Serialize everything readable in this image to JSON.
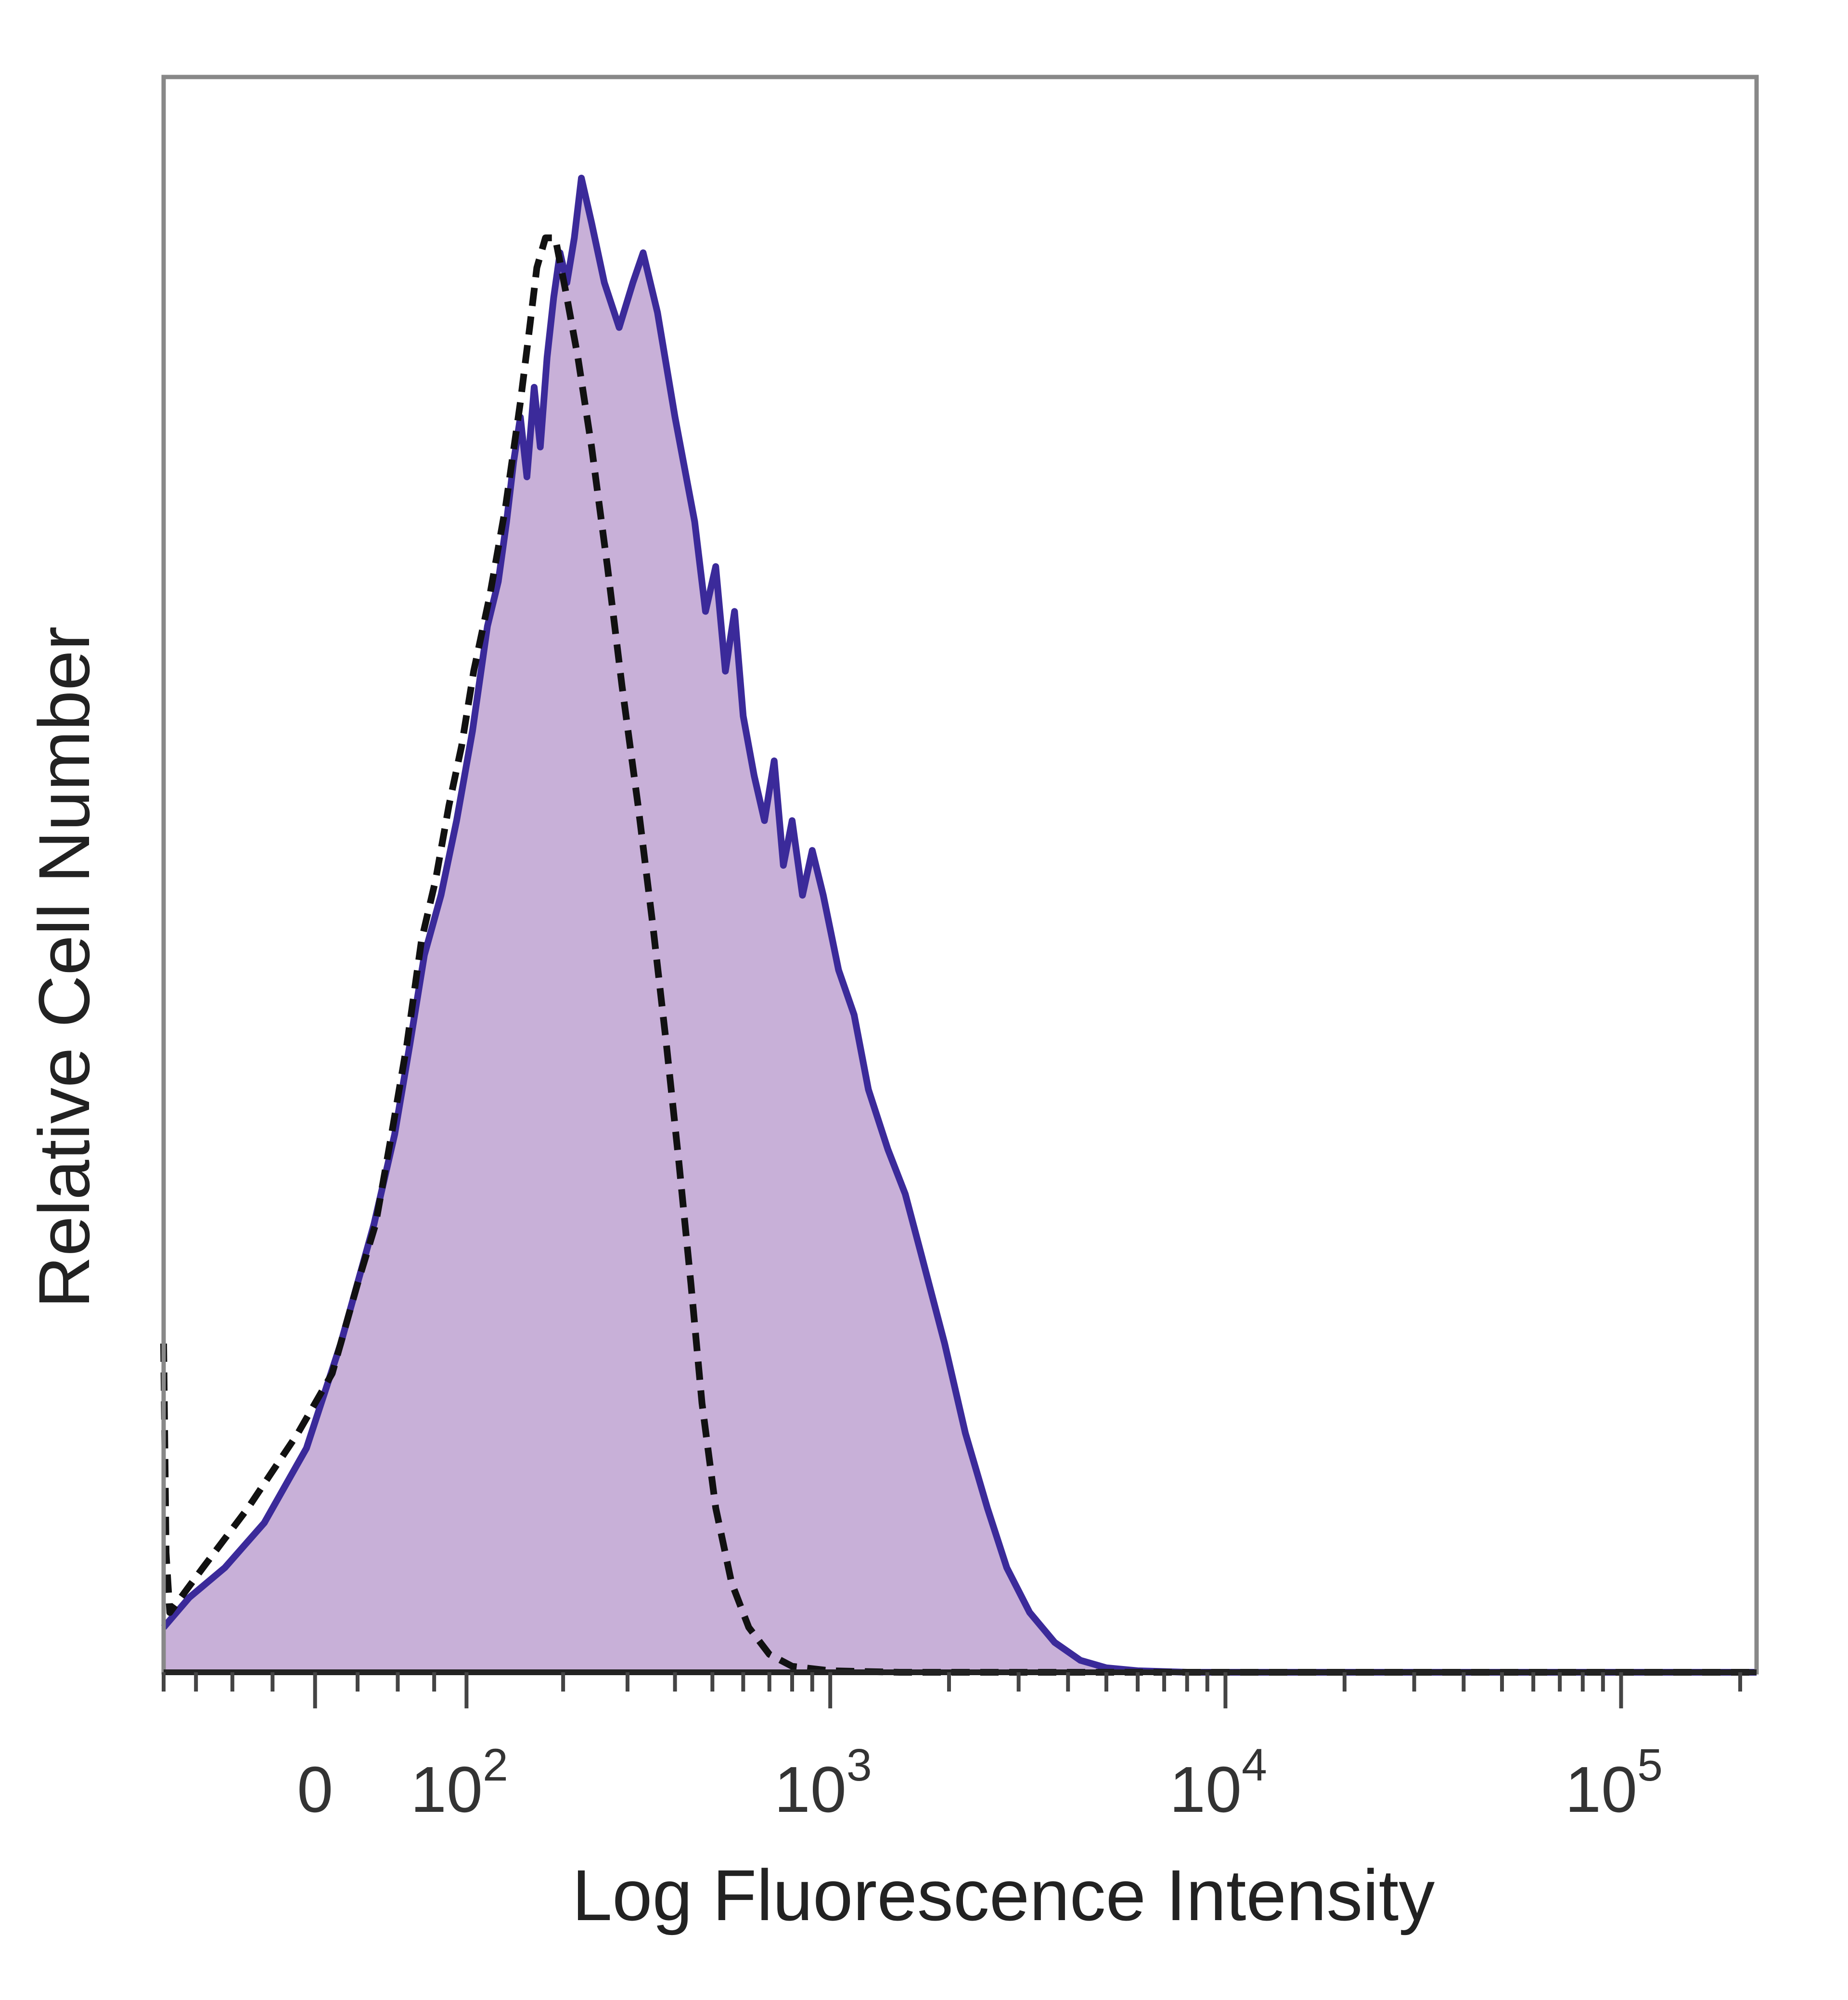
{
  "chart_data": {
    "type": "area",
    "title": "",
    "xlabel": "Log Fluorescence Intensity",
    "ylabel": "Relative Cell Number",
    "x_scale": "biexponential",
    "xlim": [
      -100,
      220000
    ],
    "ylim": [
      0,
      1
    ],
    "grid": false,
    "legend": "none",
    "x_ticks": [
      {
        "value": 0,
        "label": "0",
        "exp": ""
      },
      {
        "value": 100,
        "label": "10",
        "exp": "2"
      },
      {
        "value": 1000,
        "label": "10",
        "exp": "3"
      },
      {
        "value": 10000,
        "label": "10",
        "exp": "4"
      },
      {
        "value": 100000,
        "label": "10",
        "exp": "5"
      }
    ],
    "series": [
      {
        "style": "filled",
        "line_color": "#3b2a9a",
        "fill_color": "#c8b0d8",
        "points": [
          [
            -100,
            0.03
          ],
          [
            -80,
            0.05
          ],
          [
            -55,
            0.07
          ],
          [
            -30,
            0.1
          ],
          [
            -5,
            0.15
          ],
          [
            15,
            0.22
          ],
          [
            35,
            0.3
          ],
          [
            48,
            0.36
          ],
          [
            58,
            0.42
          ],
          [
            68,
            0.48
          ],
          [
            80,
            0.52
          ],
          [
            92,
            0.57
          ],
          [
            105,
            0.63
          ],
          [
            118,
            0.7
          ],
          [
            128,
            0.73
          ],
          [
            136,
            0.77
          ],
          [
            143,
            0.81
          ],
          [
            150,
            0.84
          ],
          [
            157,
            0.8
          ],
          [
            165,
            0.86
          ],
          [
            172,
            0.82
          ],
          [
            180,
            0.88
          ],
          [
            188,
            0.92
          ],
          [
            196,
            0.95
          ],
          [
            205,
            0.93
          ],
          [
            215,
            0.96
          ],
          [
            225,
            1.0
          ],
          [
            240,
            0.97
          ],
          [
            260,
            0.93
          ],
          [
            285,
            0.9
          ],
          [
            310,
            0.93
          ],
          [
            330,
            0.95
          ],
          [
            360,
            0.91
          ],
          [
            400,
            0.84
          ],
          [
            450,
            0.77
          ],
          [
            480,
            0.71
          ],
          [
            510,
            0.74
          ],
          [
            540,
            0.67
          ],
          [
            570,
            0.71
          ],
          [
            600,
            0.64
          ],
          [
            640,
            0.6
          ],
          [
            680,
            0.57
          ],
          [
            720,
            0.61
          ],
          [
            760,
            0.54
          ],
          [
            800,
            0.57
          ],
          [
            850,
            0.52
          ],
          [
            900,
            0.55
          ],
          [
            960,
            0.52
          ],
          [
            1050,
            0.47
          ],
          [
            1150,
            0.44
          ],
          [
            1250,
            0.39
          ],
          [
            1400,
            0.35
          ],
          [
            1550,
            0.32
          ],
          [
            1700,
            0.28
          ],
          [
            1950,
            0.22
          ],
          [
            2200,
            0.16
          ],
          [
            2500,
            0.11
          ],
          [
            2800,
            0.07
          ],
          [
            3200,
            0.04
          ],
          [
            3700,
            0.02
          ],
          [
            4300,
            0.008
          ],
          [
            5000,
            0.003
          ],
          [
            6000,
            0.001
          ],
          [
            8000,
            0
          ],
          [
            20000,
            0
          ],
          [
            50000,
            0
          ],
          [
            100000,
            0
          ],
          [
            220000,
            0
          ]
        ]
      },
      {
        "style": "dashed",
        "line_color": "#111111",
        "points": [
          [
            -100,
            0.22
          ],
          [
            -98,
            0.08
          ],
          [
            -95,
            0.04
          ],
          [
            -70,
            0.07
          ],
          [
            -40,
            0.11
          ],
          [
            -10,
            0.16
          ],
          [
            10,
            0.2
          ],
          [
            25,
            0.26
          ],
          [
            36,
            0.3
          ],
          [
            46,
            0.36
          ],
          [
            56,
            0.42
          ],
          [
            66,
            0.49
          ],
          [
            76,
            0.53
          ],
          [
            86,
            0.58
          ],
          [
            96,
            0.62
          ],
          [
            106,
            0.67
          ],
          [
            120,
            0.72
          ],
          [
            135,
            0.78
          ],
          [
            150,
            0.85
          ],
          [
            160,
            0.9
          ],
          [
            168,
            0.94
          ],
          [
            178,
            0.96
          ],
          [
            190,
            0.96
          ],
          [
            205,
            0.92
          ],
          [
            220,
            0.88
          ],
          [
            240,
            0.82
          ],
          [
            265,
            0.74
          ],
          [
            290,
            0.66
          ],
          [
            320,
            0.58
          ],
          [
            350,
            0.5
          ],
          [
            380,
            0.42
          ],
          [
            410,
            0.34
          ],
          [
            440,
            0.26
          ],
          [
            470,
            0.18
          ],
          [
            510,
            0.11
          ],
          [
            560,
            0.06
          ],
          [
            620,
            0.03
          ],
          [
            700,
            0.012
          ],
          [
            800,
            0.004
          ],
          [
            1000,
            0.001
          ],
          [
            1500,
            0
          ],
          [
            5000,
            0
          ],
          [
            20000,
            0
          ],
          [
            100000,
            0
          ],
          [
            220000,
            0
          ]
        ]
      }
    ]
  }
}
